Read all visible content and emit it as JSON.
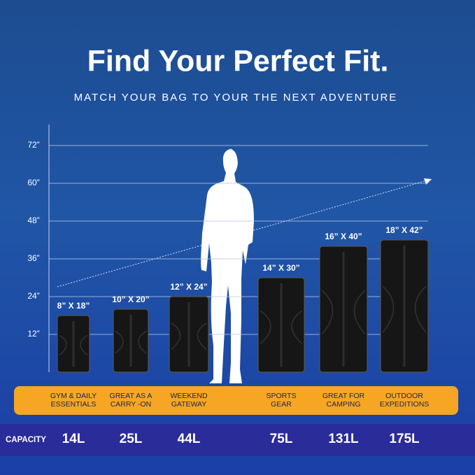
{
  "chart_data": {
    "type": "bar",
    "title": "Find Your Perfect Fit.",
    "subtitle": "MATCH YOUR BAG TO YOUR THE NEXT ADVENTURE",
    "categories": [
      "GYM & DAILY\nESSENTIALS",
      "GREAT AS A\nCARRY -ON",
      "WEEKEND\nGATEWAY",
      "SPORTS\nGEAR",
      "GREAT FOR\nCAMPING",
      "OUTDOOR\nEXPEDITIONS"
    ],
    "values": [
      18,
      20,
      24,
      30,
      40,
      42
    ],
    "value_labels": [
      "8” X 18”",
      "10” X 20”",
      "12” X 24”",
      "14” X 30”",
      "16” X 40”",
      "18” X 42”"
    ],
    "capacity_label": "CAPACITY",
    "capacities": [
      "14L",
      "25L",
      "44L",
      "75L",
      "131L",
      "175L"
    ],
    "color": "#161616",
    "ylim": [
      0,
      78
    ],
    "yticks": [
      {
        "value": 12,
        "label": "12”"
      },
      {
        "value": 24,
        "label": "24”"
      },
      {
        "value": 36,
        "label": "36”"
      },
      {
        "value": 48,
        "label": "48”"
      },
      {
        "value": 60,
        "label": "60”"
      },
      {
        "value": 72,
        "label": "72”"
      }
    ],
    "grid": true
  }
}
